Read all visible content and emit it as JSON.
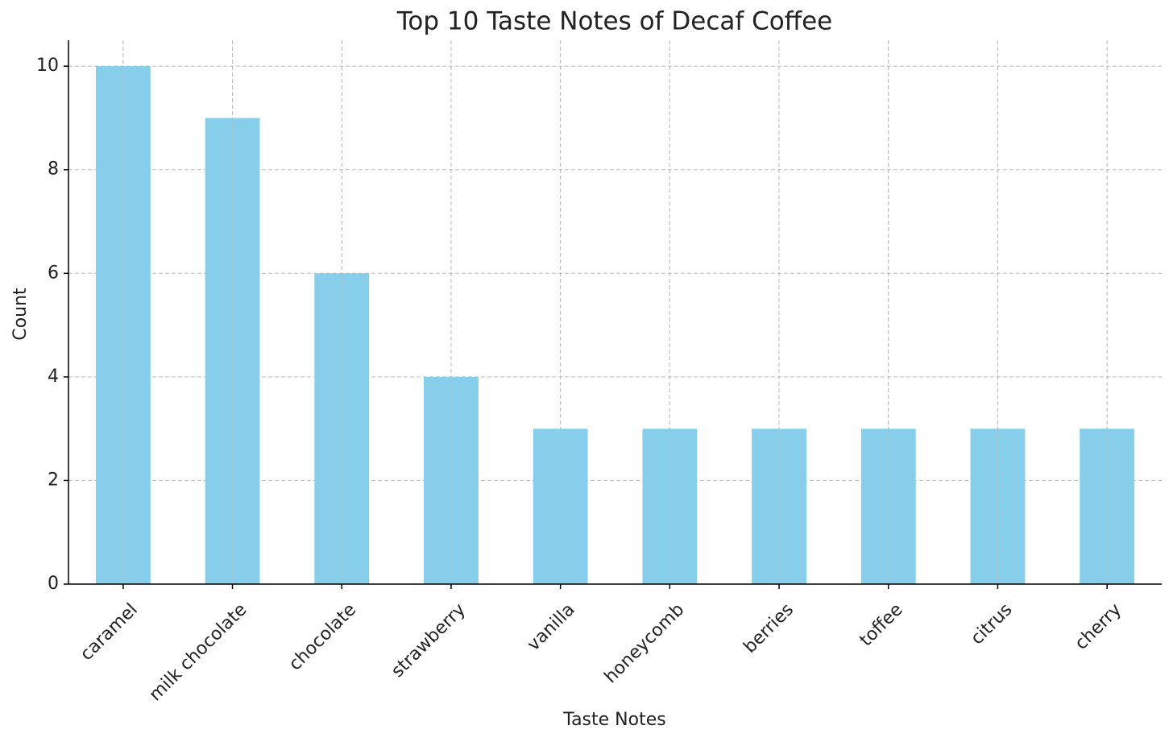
{
  "chart_data": {
    "type": "bar",
    "title": "Top 10 Taste Notes of Decaf Coffee",
    "x_label": "Taste Notes",
    "y_label": "Count",
    "categories": [
      "caramel",
      "milk chocolate",
      "chocolate",
      "strawberry",
      "vanilla",
      "honeycomb",
      "berries",
      "toffee",
      "citrus",
      "cherry"
    ],
    "values": [
      10,
      9,
      6,
      4,
      3,
      3,
      3,
      3,
      3,
      3
    ],
    "color": "#87ceeb",
    "ylim": [
      0,
      10.5
    ],
    "yticks": [
      0,
      2,
      4,
      6,
      8,
      10
    ],
    "grid": true
  }
}
